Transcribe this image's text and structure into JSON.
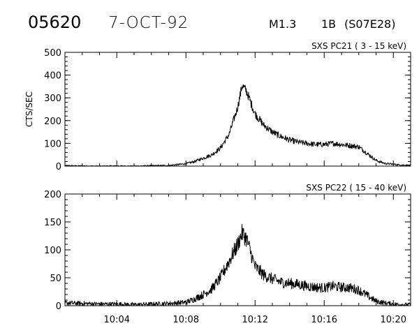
{
  "header": {
    "event_number": "05620",
    "date": "7-OCT-92",
    "flare_class": "M1.3",
    "optical_class": "1B",
    "location": "(S07E28)"
  },
  "chart_data": [
    {
      "type": "line",
      "title": "SXS PC21  (  3 - 15 keV)",
      "ylabel": "CTS/SEC",
      "xlabel": "",
      "xlim": [
        "10:01:00",
        "10:21:00"
      ],
      "ylim": [
        0,
        500
      ],
      "yticks": [
        "0",
        "100",
        "200",
        "300",
        "400",
        "500"
      ],
      "xticks": [
        "10:04",
        "10:08",
        "10:12",
        "10:16",
        "10:20"
      ],
      "series": [
        {
          "x": [
            "10:01",
            "10:02",
            "10:03",
            "10:04",
            "10:05",
            "10:06",
            "10:07",
            "10:08",
            "10:08:30",
            "10:09",
            "10:09:30",
            "10:10",
            "10:10:30",
            "10:11",
            "10:11:15",
            "10:11:30",
            "10:11:45",
            "10:12",
            "10:12:30",
            "10:13",
            "10:13:30",
            "10:14",
            "10:14:30",
            "10:15",
            "10:15:30",
            "10:16",
            "10:16:30",
            "10:17",
            "10:17:30",
            "10:18",
            "10:18:30",
            "10:19",
            "10:19:30",
            "10:20",
            "10:20:30",
            "10:21"
          ],
          "values": [
            2,
            1,
            0,
            1,
            0,
            2,
            3,
            10,
            20,
            35,
            50,
            80,
            140,
            260,
            355,
            330,
            280,
            230,
            180,
            150,
            130,
            115,
            105,
            100,
            95,
            95,
            100,
            95,
            90,
            85,
            55,
            25,
            12,
            8,
            5,
            3
          ]
        }
      ]
    },
    {
      "type": "line",
      "title": "SXS PC22  ( 15 - 40 keV)",
      "ylabel": "",
      "xlabel": "",
      "xlim": [
        "10:01:00",
        "10:21:00"
      ],
      "ylim": [
        0,
        200
      ],
      "yticks": [
        "0",
        "50",
        "100",
        "150",
        "200"
      ],
      "xticks": [
        "10:04",
        "10:08",
        "10:12",
        "10:16",
        "10:20"
      ],
      "series": [
        {
          "x": [
            "10:01",
            "10:02",
            "10:03",
            "10:04",
            "10:05",
            "10:06",
            "10:07",
            "10:08",
            "10:08:30",
            "10:09",
            "10:09:30",
            "10:10",
            "10:10:30",
            "10:11",
            "10:11:15",
            "10:11:30",
            "10:11:45",
            "10:12",
            "10:12:30",
            "10:13",
            "10:13:30",
            "10:14",
            "10:14:30",
            "10:15",
            "10:15:30",
            "10:16",
            "10:16:30",
            "10:17",
            "10:17:30",
            "10:18",
            "10:18:30",
            "10:19",
            "10:19:30",
            "10:20",
            "10:20:30",
            "10:21"
          ],
          "values": [
            5,
            4,
            3,
            3,
            2,
            3,
            4,
            6,
            12,
            20,
            30,
            50,
            80,
            110,
            130,
            120,
            95,
            70,
            55,
            48,
            42,
            40,
            38,
            35,
            33,
            32,
            35,
            33,
            32,
            28,
            18,
            8,
            5,
            3,
            2,
            2
          ]
        }
      ]
    }
  ]
}
